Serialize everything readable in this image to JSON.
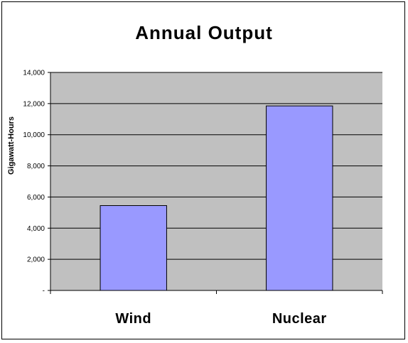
{
  "chart_data": {
    "type": "bar",
    "title": "Annual Output",
    "xlabel": "",
    "ylabel": "Gigawatt-Hours",
    "categories": [
      "Wind",
      "Nuclear"
    ],
    "values": [
      5450,
      11850
    ],
    "ylim": [
      0,
      14000
    ],
    "yticks": [
      0,
      2000,
      4000,
      6000,
      8000,
      10000,
      12000,
      14000
    ],
    "ytick_labels": [
      "-",
      "2,000",
      "4,000",
      "6,000",
      "8,000",
      "10,000",
      "12,000",
      "14,000"
    ],
    "grid": true,
    "legend": "none",
    "colors": {
      "plot_background": "#c0c0c0",
      "bar_fill": "#9999ff",
      "bar_stroke": "#000000",
      "gridline": "#000000"
    }
  }
}
